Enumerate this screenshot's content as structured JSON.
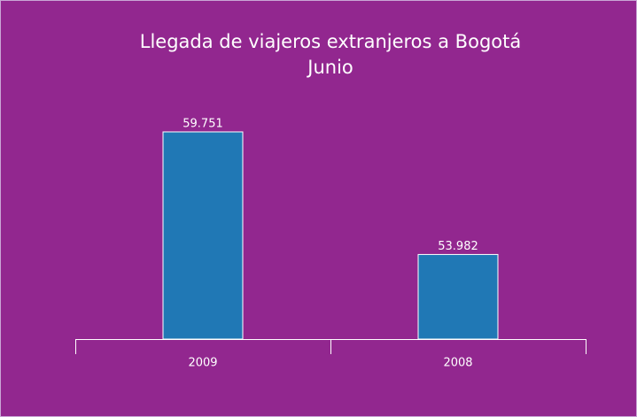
{
  "chart_data": {
    "type": "bar",
    "title": [
      "Llegada de viajeros extranjeros a Bogotá",
      "Junio"
    ],
    "categories": [
      "2009",
      "2008"
    ],
    "values": [
      59751,
      53982
    ],
    "value_labels": [
      "59.751",
      "53.982"
    ],
    "color": "#2078b5",
    "ylim": [
      50000,
      62000
    ]
  }
}
